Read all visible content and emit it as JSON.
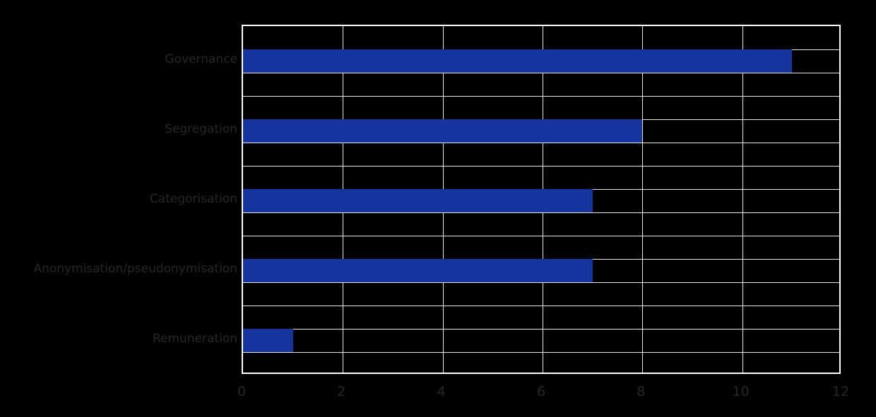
{
  "window": {
    "background_color": "#000000"
  },
  "chart_data": {
    "type": "bar",
    "orientation": "horizontal",
    "title": "",
    "xlabel": "",
    "ylabel": "",
    "categories": [
      "Governance",
      "Segregation",
      "Categorisation",
      "Anonymisation/pseudonymisation",
      "Remuneration"
    ],
    "values": [
      11,
      8,
      7,
      7,
      1
    ],
    "xlim": [
      0,
      12
    ],
    "xticks": [
      0,
      2,
      4,
      6,
      8,
      10,
      12
    ],
    "xtick_labels": [
      "0",
      "2",
      "4",
      "6",
      "8",
      "10",
      "12"
    ],
    "grid": "on",
    "legend_position": "none",
    "bar_color": "#16349e",
    "grid_color": "#e8e8e8",
    "axis_border_color": "#ffffff",
    "tick_text_color": "#262626",
    "plot_background": "#000000"
  },
  "layout_hints": {
    "note": "dark tick/category text on black background, bars outlined by horizontal gridlines at bar edges"
  }
}
